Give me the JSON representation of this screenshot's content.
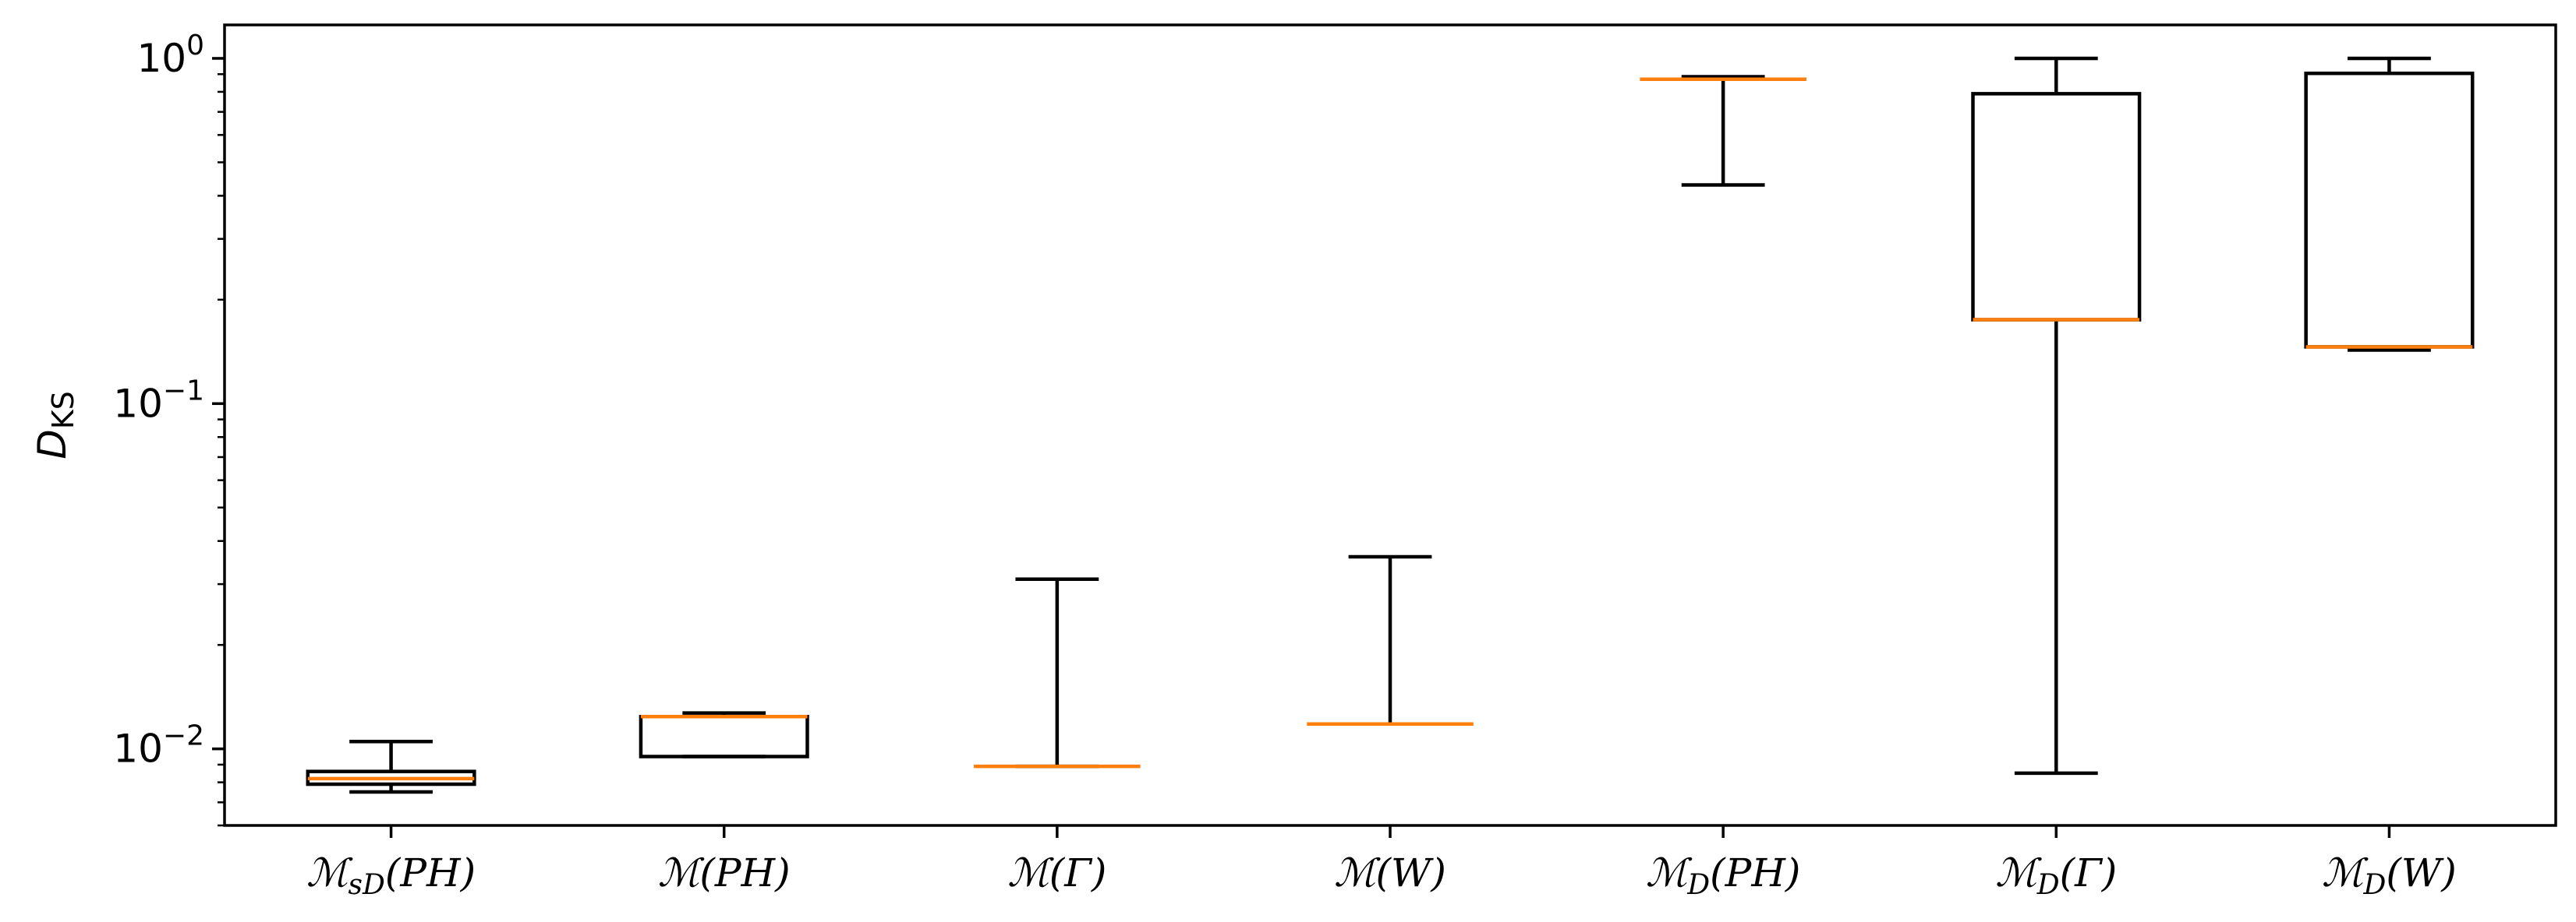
{
  "chart_data": {
    "type": "box",
    "title": "",
    "xlabel": "",
    "ylabel": "D",
    "ylabel_sub": "KS",
    "yscale": "log",
    "ylim": [
      0.006,
      1.25
    ],
    "yticks": [
      {
        "value": 0.01,
        "base": "10",
        "exp": "−2"
      },
      {
        "value": 0.1,
        "base": "10",
        "exp": "−1"
      },
      {
        "value": 1,
        "base": "10",
        "exp": "0"
      }
    ],
    "categories": [
      {
        "main": "ℳ",
        "sub": "sD",
        "arg": "(PH)"
      },
      {
        "main": "ℳ",
        "sub": "",
        "arg": "(PH)"
      },
      {
        "main": "ℳ",
        "sub": "",
        "arg": "(Γ)"
      },
      {
        "main": "ℳ",
        "sub": "",
        "arg": "(W)"
      },
      {
        "main": "ℳ",
        "sub": "D",
        "arg": "(PH)"
      },
      {
        "main": "ℳ",
        "sub": "D",
        "arg": "(Γ)"
      },
      {
        "main": "ℳ",
        "sub": "D",
        "arg": "(W)"
      }
    ],
    "boxes": [
      {
        "whisker_low": 0.0075,
        "q1": 0.0079,
        "median": 0.0082,
        "q3": 0.0086,
        "whisker_high": 0.0105
      },
      {
        "whisker_low": 0.0095,
        "q1": 0.0095,
        "median": 0.0124,
        "q3": 0.0124,
        "whisker_high": 0.0127
      },
      {
        "whisker_low": 0.0089,
        "q1": 0.0089,
        "median": 0.0089,
        "q3": 0.0089,
        "whisker_high": 0.031
      },
      {
        "whisker_low": 0.0118,
        "q1": 0.0118,
        "median": 0.0118,
        "q3": 0.0118,
        "whisker_high": 0.036
      },
      {
        "whisker_low": 0.43,
        "q1": 0.87,
        "median": 0.87,
        "q3": 0.87,
        "whisker_high": 0.885
      },
      {
        "whisker_low": 0.0085,
        "q1": 0.175,
        "median": 0.175,
        "q3": 0.79,
        "whisker_high": 1.0
      },
      {
        "whisker_low": 0.143,
        "q1": 0.146,
        "median": 0.146,
        "q3": 0.905,
        "whisker_high": 1.0
      }
    ],
    "colors": {
      "box": "#000000",
      "median": "#ff7f0e",
      "axes": "#000000"
    },
    "grid": false,
    "legend": "none"
  }
}
